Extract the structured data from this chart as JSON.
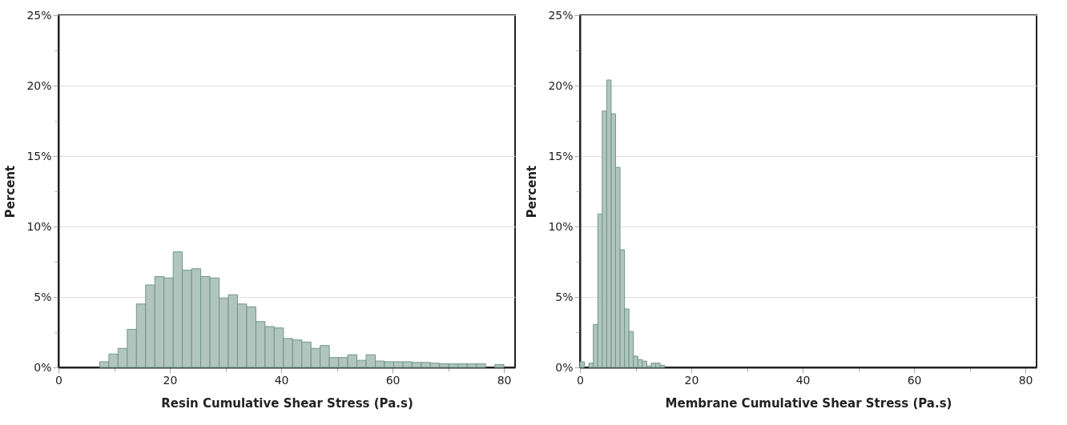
{
  "chart_data": [
    {
      "type": "histogram",
      "xlabel": "Resin Cumulative Shear Stress (Pa.s)",
      "ylabel": "Percent",
      "color": "#b1c5be",
      "grid": "y",
      "bins": [
        7.4,
        9.05,
        10.7,
        12.35,
        14.0,
        15.65,
        17.3,
        18.95,
        20.6,
        22.25,
        23.9,
        25.55,
        27.2,
        28.85,
        30.5,
        32.15,
        33.8,
        35.45,
        37.1,
        38.75,
        40.4,
        42.05,
        43.7,
        45.35,
        47.0,
        48.65,
        50.3,
        51.95,
        53.6,
        55.25,
        56.9,
        58.55,
        60.2,
        61.85,
        63.5,
        65.15,
        66.8,
        68.45,
        70.1,
        71.75,
        73.4,
        75.05,
        76.7,
        78.35,
        80.0
      ],
      "values": [
        0.4,
        0.95,
        1.35,
        2.7,
        4.5,
        5.85,
        6.45,
        6.35,
        8.2,
        6.9,
        7.0,
        6.45,
        6.35,
        4.9,
        5.15,
        4.5,
        4.3,
        3.25,
        2.9,
        2.8,
        2.05,
        1.95,
        1.8,
        1.35,
        1.55,
        0.7,
        0.7,
        0.9,
        0.5,
        0.9,
        0.45,
        0.4,
        0.4,
        0.4,
        0.35,
        0.35,
        0.3,
        0.25,
        0.25,
        0.25,
        0.25,
        0.25,
        0,
        0.2
      ],
      "xlim": [
        0,
        82
      ],
      "xticks": [
        0,
        {
          "value": 10,
          "label": null
        },
        20,
        {
          "value": 30,
          "label": null
        },
        40,
        {
          "value": 50,
          "label": null
        },
        60,
        {
          "value": 70,
          "label": null
        },
        80
      ],
      "ylim": [
        0,
        25
      ],
      "yticks": [
        {
          "value": 0,
          "label": "0%"
        },
        {
          "value": 2.5,
          "label": null
        },
        {
          "value": 5,
          "label": "5%"
        },
        {
          "value": 7.5,
          "label": null
        },
        {
          "value": 10,
          "label": "10%"
        },
        {
          "value": 12.5,
          "label": null
        },
        {
          "value": 15,
          "label": "15%"
        },
        {
          "value": 17.5,
          "label": null
        },
        {
          "value": 20,
          "label": "20%"
        },
        {
          "value": 22.5,
          "label": null
        },
        {
          "value": 25,
          "label": "25%"
        }
      ]
    },
    {
      "type": "histogram",
      "xlabel": "Membrane Cumulative Shear Stress (Pa.s)",
      "ylabel": "Percent",
      "color": "#b1c5be",
      "grid": "y",
      "bins": [
        0,
        0.8,
        1.6,
        2.4,
        3.2,
        4.0,
        4.8,
        5.6,
        6.4,
        7.2,
        8.0,
        8.8,
        9.6,
        10.4,
        11.2,
        12.0,
        12.8,
        13.6,
        14.4,
        15.2
      ],
      "values": [
        0.4,
        0,
        0.3,
        3.05,
        10.9,
        18.2,
        20.4,
        18.0,
        14.2,
        8.35,
        4.15,
        2.55,
        0.8,
        0.55,
        0.45,
        0.1,
        0.3,
        0.3,
        0.15
      ],
      "xlim": [
        0,
        82
      ],
      "xticks": [
        0,
        {
          "value": 10,
          "label": null
        },
        20,
        {
          "value": 30,
          "label": null
        },
        40,
        {
          "value": 50,
          "label": null
        },
        60,
        {
          "value": 70,
          "label": null
        },
        80
      ],
      "ylim": [
        0,
        25
      ],
      "yticks": [
        {
          "value": 0,
          "label": "0%"
        },
        {
          "value": 2.5,
          "label": null
        },
        {
          "value": 5,
          "label": "5%"
        },
        {
          "value": 7.5,
          "label": null
        },
        {
          "value": 10,
          "label": "10%"
        },
        {
          "value": 12.5,
          "label": null
        },
        {
          "value": 15,
          "label": "15%"
        },
        {
          "value": 17.5,
          "label": null
        },
        {
          "value": 20,
          "label": "20%"
        },
        {
          "value": 22.5,
          "label": null
        },
        {
          "value": 25,
          "label": "25%"
        }
      ]
    }
  ]
}
